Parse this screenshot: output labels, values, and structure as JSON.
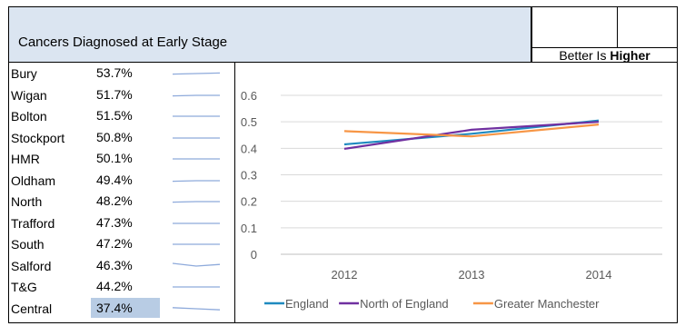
{
  "header": {
    "title": "Cancers Diagnosed at Early Stage",
    "better_prefix": "Better Is ",
    "better_emph": "Higher"
  },
  "areas": [
    {
      "name": "Bury",
      "value": "53.7%",
      "trend": [
        0.535,
        0.536,
        0.537
      ]
    },
    {
      "name": "Wigan",
      "value": "51.7%",
      "trend": [
        0.516,
        0.517,
        0.517
      ]
    },
    {
      "name": "Bolton",
      "value": "51.5%",
      "trend": [
        0.515,
        0.515,
        0.515
      ]
    },
    {
      "name": "Stockport",
      "value": "50.8%",
      "trend": [
        0.508,
        0.508,
        0.508
      ]
    },
    {
      "name": "HMR",
      "value": "50.1%",
      "trend": [
        0.501,
        0.501,
        0.501
      ]
    },
    {
      "name": "Oldham",
      "value": "49.4%",
      "trend": [
        0.493,
        0.494,
        0.494
      ]
    },
    {
      "name": "North",
      "value": "48.2%",
      "trend": [
        0.481,
        0.482,
        0.482
      ]
    },
    {
      "name": "Trafford",
      "value": "47.3%",
      "trend": [
        0.473,
        0.473,
        0.473
      ]
    },
    {
      "name": "South",
      "value": "47.2%",
      "trend": [
        0.472,
        0.472,
        0.472
      ]
    },
    {
      "name": "Salford",
      "value": "46.3%",
      "trend": [
        0.465,
        0.46,
        0.463
      ]
    },
    {
      "name": "T&G",
      "value": "44.2%",
      "trend": [
        0.442,
        0.442,
        0.442
      ]
    },
    {
      "name": "Central",
      "value": "37.4%",
      "trend": [
        0.378,
        0.376,
        0.374
      ],
      "highlight": true
    }
  ],
  "sparkline_color": "#8eaadb",
  "chart_data": {
    "type": "line",
    "x": [
      "2012",
      "2013",
      "2014"
    ],
    "ylim": [
      0,
      0.6
    ],
    "yticks": [
      "0",
      "0.1",
      "0.2",
      "0.3",
      "0.4",
      "0.5",
      "0.6"
    ],
    "grid": true,
    "legend_position": "bottom",
    "series": [
      {
        "name": "England",
        "values": [
          0.415,
          0.455,
          0.505
        ],
        "color": "#1f8ac0"
      },
      {
        "name": "North of England",
        "values": [
          0.398,
          0.47,
          0.5
        ],
        "color": "#7030a0"
      },
      {
        "name": "Greater Manchester",
        "values": [
          0.465,
          0.445,
          0.49
        ],
        "color": "#f79646"
      }
    ]
  }
}
